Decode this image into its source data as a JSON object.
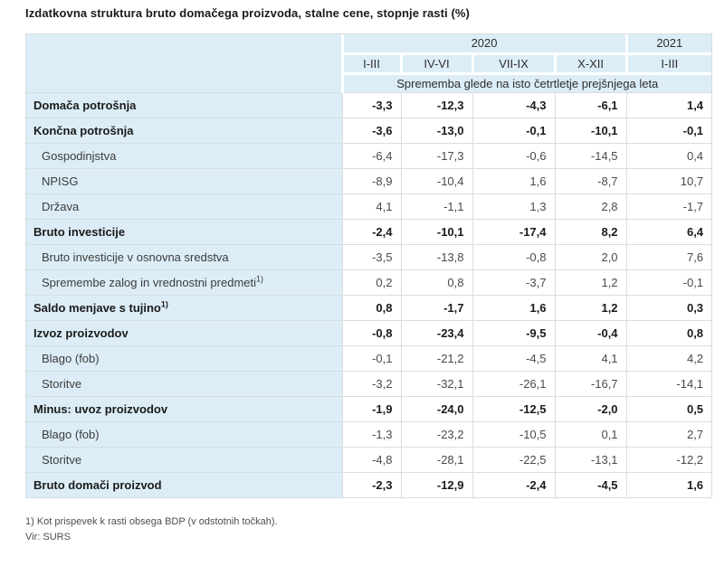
{
  "title": "Izdatkovna struktura bruto domačega proizvoda, stalne cene, stopnje rasti (%)",
  "chart_data": {
    "type": "table",
    "title": "Izdatkovna struktura bruto domačega proizvoda, stalne cene, stopnje rasti (%)",
    "year_groups": [
      {
        "label": "2020",
        "colspan": 4
      },
      {
        "label": "2021",
        "colspan": 1
      }
    ],
    "quarter_columns": [
      "I-III",
      "IV-VI",
      "VII-IX",
      "X-XII",
      "I-III"
    ],
    "measure_note": "Sprememba glede na isto četrtletje prejšnjega leta",
    "rows": [
      {
        "label": "Domača potrošnja",
        "bold": true,
        "indent": false,
        "sup": "",
        "values": [
          "-3,3",
          "-12,3",
          "-4,3",
          "-6,1",
          "1,4"
        ]
      },
      {
        "label": "Končna potrošnja",
        "bold": true,
        "indent": false,
        "sup": "",
        "values": [
          "-3,6",
          "-13,0",
          "-0,1",
          "-10,1",
          "-0,1"
        ]
      },
      {
        "label": "Gospodinjstva",
        "bold": false,
        "indent": true,
        "sup": "",
        "values": [
          "-6,4",
          "-17,3",
          "-0,6",
          "-14,5",
          "0,4"
        ]
      },
      {
        "label": "NPISG",
        "bold": false,
        "indent": true,
        "sup": "",
        "values": [
          "-8,9",
          "-10,4",
          "1,6",
          "-8,7",
          "10,7"
        ]
      },
      {
        "label": "Država",
        "bold": false,
        "indent": true,
        "sup": "",
        "values": [
          "4,1",
          "-1,1",
          "1,3",
          "2,8",
          "-1,7"
        ]
      },
      {
        "label": "Bruto investicije",
        "bold": true,
        "indent": false,
        "sup": "",
        "values": [
          "-2,4",
          "-10,1",
          "-17,4",
          "8,2",
          "6,4"
        ]
      },
      {
        "label": "Bruto investicije v osnovna sredstva",
        "bold": false,
        "indent": true,
        "sup": "",
        "values": [
          "-3,5",
          "-13,8",
          "-0,8",
          "2,0",
          "7,6"
        ]
      },
      {
        "label": "Spremembe zalog in vrednostni predmeti",
        "bold": false,
        "indent": true,
        "sup": "1)",
        "values": [
          "0,2",
          "0,8",
          "-3,7",
          "1,2",
          "-0,1"
        ]
      },
      {
        "label": "Saldo menjave s tujino",
        "bold": true,
        "indent": false,
        "sup": "1)",
        "values": [
          "0,8",
          "-1,7",
          "1,6",
          "1,2",
          "0,3"
        ]
      },
      {
        "label": "Izvoz proizvodov",
        "bold": true,
        "indent": false,
        "sup": "",
        "values": [
          "-0,8",
          "-23,4",
          "-9,5",
          "-0,4",
          "0,8"
        ]
      },
      {
        "label": "Blago (fob)",
        "bold": false,
        "indent": true,
        "sup": "",
        "values": [
          "-0,1",
          "-21,2",
          "-4,5",
          "4,1",
          "4,2"
        ]
      },
      {
        "label": "Storitve",
        "bold": false,
        "indent": true,
        "sup": "",
        "values": [
          "-3,2",
          "-32,1",
          "-26,1",
          "-16,7",
          "-14,1"
        ]
      },
      {
        "label": "Minus: uvoz proizvodov",
        "bold": true,
        "indent": false,
        "sup": "",
        "values": [
          "-1,9",
          "-24,0",
          "-12,5",
          "-2,0",
          "0,5"
        ]
      },
      {
        "label": "Blago (fob)",
        "bold": false,
        "indent": true,
        "sup": "",
        "values": [
          "-1,3",
          "-23,2",
          "-10,5",
          "0,1",
          "2,7"
        ]
      },
      {
        "label": "Storitve",
        "bold": false,
        "indent": true,
        "sup": "",
        "values": [
          "-4,8",
          "-28,1",
          "-22,5",
          "-13,1",
          "-12,2"
        ]
      },
      {
        "label": "Bruto domači proizvod",
        "bold": true,
        "indent": false,
        "sup": "",
        "values": [
          "-2,3",
          "-12,9",
          "-2,4",
          "-4,5",
          "1,6"
        ]
      }
    ]
  },
  "footnotes": {
    "note1": "1) Kot prispevek k rasti obsega BDP (v odstotnih točkah).",
    "source": "Vir: SURS"
  },
  "colors": {
    "header_bg": "#dcedf7",
    "border": "#d8dde0",
    "bold_text": "#1b1b1b",
    "normal_text": "#4a4a4a",
    "background": "#ffffff"
  }
}
